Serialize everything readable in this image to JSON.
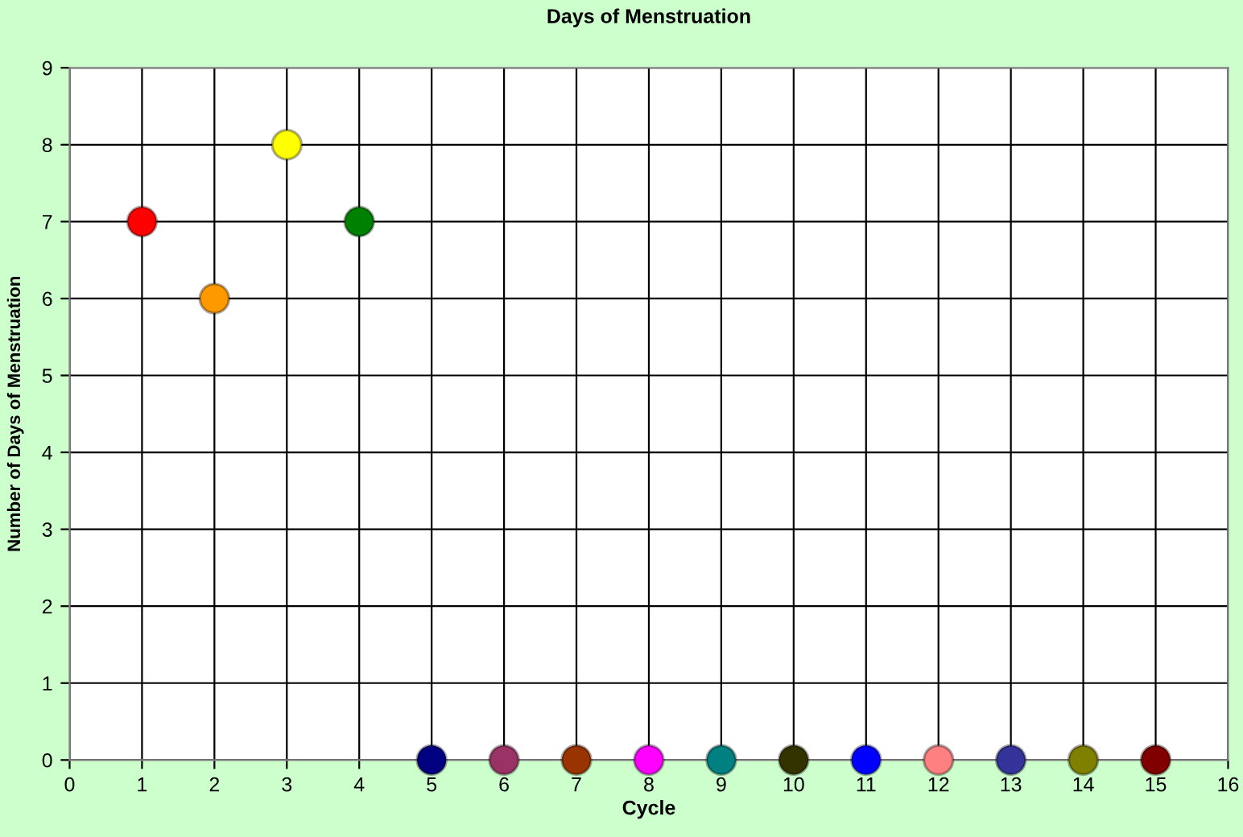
{
  "chart_data": {
    "type": "scatter",
    "title": "Days of Menstruation",
    "xlabel": "Cycle",
    "ylabel": "Number of Days of Menstruation",
    "x": [
      1,
      2,
      3,
      4,
      5,
      6,
      7,
      8,
      9,
      10,
      11,
      12,
      13,
      14,
      15
    ],
    "values": [
      7,
      6,
      8,
      7,
      0,
      0,
      0,
      0,
      0,
      0,
      0,
      0,
      0,
      0,
      0
    ],
    "colors": [
      "#ff0000",
      "#ff9900",
      "#ffff00",
      "#008000",
      "#000080",
      "#993366",
      "#993300",
      "#ff00ff",
      "#008080",
      "#333300",
      "#0000ff",
      "#ff8080",
      "#333399",
      "#808000",
      "#800000"
    ],
    "xlim": [
      0,
      16
    ],
    "xticks": [
      0,
      1,
      2,
      3,
      4,
      5,
      6,
      7,
      8,
      9,
      10,
      11,
      12,
      13,
      14,
      15,
      16
    ],
    "ylim": [
      0,
      9
    ],
    "yticks": [
      0,
      1,
      2,
      3,
      4,
      5,
      6,
      7,
      8,
      9
    ],
    "grid": true,
    "marker": "circle"
  }
}
